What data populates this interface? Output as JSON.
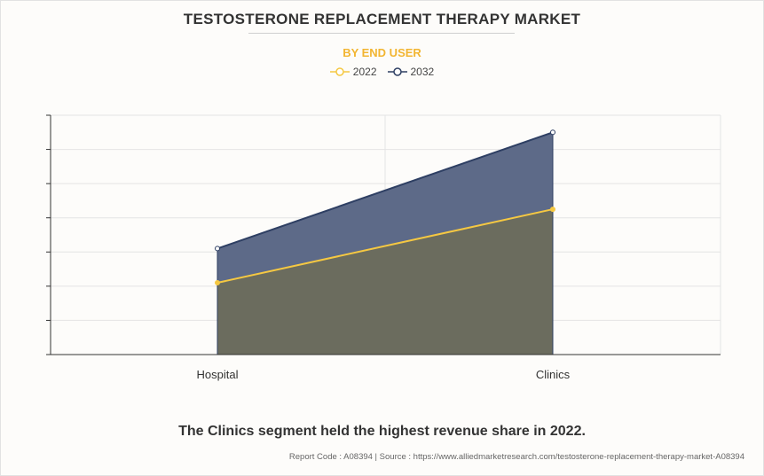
{
  "header": {
    "title": "TESTOSTERONE REPLACEMENT THERAPY MARKET",
    "subtitle": "BY END USER"
  },
  "colors": {
    "series_2022": "#f5c842",
    "series_2032": "#2e3f63",
    "fill_2022": "#6b6c5e",
    "fill_2032": "#5d6a88",
    "subtitle": "#f2b531"
  },
  "chart_data": {
    "type": "area",
    "categories": [
      "Hospital",
      "Clinics"
    ],
    "series": [
      {
        "name": "2022",
        "values": [
          2.1,
          4.25
        ]
      },
      {
        "name": "2032",
        "values": [
          3.1,
          6.5
        ]
      }
    ],
    "ylim": [
      0,
      7
    ],
    "y_ticks": 7,
    "grid": true,
    "legend_position": "top-center"
  },
  "caption": "The Clinics segment held the highest revenue share in 2022.",
  "footer": "Report Code : A08394  |  Source : https://www.alliedmarketresearch.com/testosterone-replacement-therapy-market-A08394"
}
